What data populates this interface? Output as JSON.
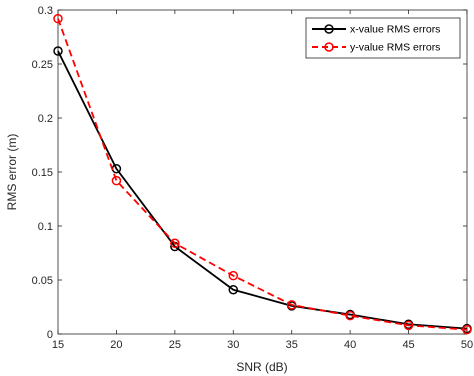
{
  "chart_data": {
    "type": "line",
    "title": "",
    "xlabel": "SNR (dB)",
    "ylabel": "RMS error (m)",
    "x": [
      15,
      20,
      25,
      30,
      35,
      40,
      45,
      50
    ],
    "xlim": [
      15,
      50
    ],
    "ylim": [
      0,
      0.3
    ],
    "xticks": [
      15,
      20,
      25,
      30,
      35,
      40,
      45,
      50
    ],
    "xtick_labels": [
      "15",
      "20",
      "25",
      "30",
      "35",
      "40",
      "45",
      "50"
    ],
    "yticks": [
      0,
      0.05,
      0.1,
      0.15,
      0.2,
      0.25,
      0.3
    ],
    "ytick_labels": [
      "0",
      "0.05",
      "0.1",
      "0.15",
      "0.2",
      "0.25",
      "0.3"
    ],
    "grid": false,
    "legend_position": "top-right",
    "series": [
      {
        "name": "x-value RMS errors",
        "values": [
          0.262,
          0.153,
          0.081,
          0.041,
          0.026,
          0.018,
          0.009,
          0.005
        ],
        "color": "#000000",
        "line_style": "solid",
        "marker": "circle"
      },
      {
        "name": "y-value RMS errors",
        "values": [
          0.292,
          0.142,
          0.084,
          0.054,
          0.027,
          0.017,
          0.008,
          0.004
        ],
        "color": "#ff0000",
        "line_style": "dashed",
        "marker": "circle"
      }
    ]
  }
}
